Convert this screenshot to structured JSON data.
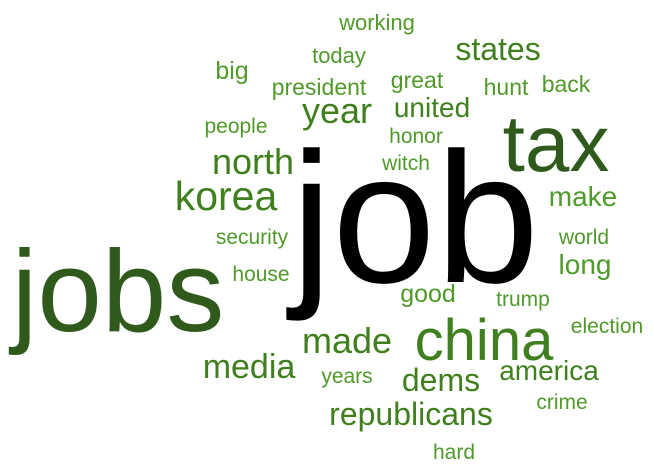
{
  "palette": {
    "black": "#000000",
    "dark_green": "#2f5a1c",
    "green": "#3f7f1e",
    "light_green": "#4f9a2a"
  },
  "words": [
    {
      "text": "job",
      "color": "#000000"
    },
    {
      "text": "jobs",
      "color": "#2f5a1c"
    },
    {
      "text": "tax",
      "color": "#2f5a1c"
    },
    {
      "text": "china",
      "color": "#3f7f1e"
    },
    {
      "text": "korea",
      "color": "#3f7f1e"
    },
    {
      "text": "north",
      "color": "#3f7f1e"
    },
    {
      "text": "year",
      "color": "#3f7f1e"
    },
    {
      "text": "states",
      "color": "#3f7f1e"
    },
    {
      "text": "made",
      "color": "#3f7f1e"
    },
    {
      "text": "republicans",
      "color": "#3f7f1e"
    },
    {
      "text": "media",
      "color": "#3f7f1e"
    },
    {
      "text": "dems",
      "color": "#3f7f1e"
    },
    {
      "text": "america",
      "color": "#3f7f1e"
    },
    {
      "text": "united",
      "color": "#3f7f1e"
    },
    {
      "text": "make",
      "color": "#4f9a2a"
    },
    {
      "text": "long",
      "color": "#4f9a2a"
    },
    {
      "text": "good",
      "color": "#4f9a2a"
    },
    {
      "text": "big",
      "color": "#4f9a2a"
    },
    {
      "text": "president",
      "color": "#4f9a2a"
    },
    {
      "text": "great",
      "color": "#4f9a2a"
    },
    {
      "text": "hunt",
      "color": "#4f9a2a"
    },
    {
      "text": "back",
      "color": "#4f9a2a"
    },
    {
      "text": "working",
      "color": "#4f9a2a"
    },
    {
      "text": "today",
      "color": "#4f9a2a"
    },
    {
      "text": "people",
      "color": "#4f9a2a"
    },
    {
      "text": "honor",
      "color": "#4f9a2a"
    },
    {
      "text": "witch",
      "color": "#4f9a2a"
    },
    {
      "text": "security",
      "color": "#4f9a2a"
    },
    {
      "text": "house",
      "color": "#4f9a2a"
    },
    {
      "text": "world",
      "color": "#4f9a2a"
    },
    {
      "text": "trump",
      "color": "#4f9a2a"
    },
    {
      "text": "election",
      "color": "#4f9a2a"
    },
    {
      "text": "years",
      "color": "#4f9a2a"
    },
    {
      "text": "crime",
      "color": "#4f9a2a"
    },
    {
      "text": "hard",
      "color": "#4f9a2a"
    }
  ]
}
